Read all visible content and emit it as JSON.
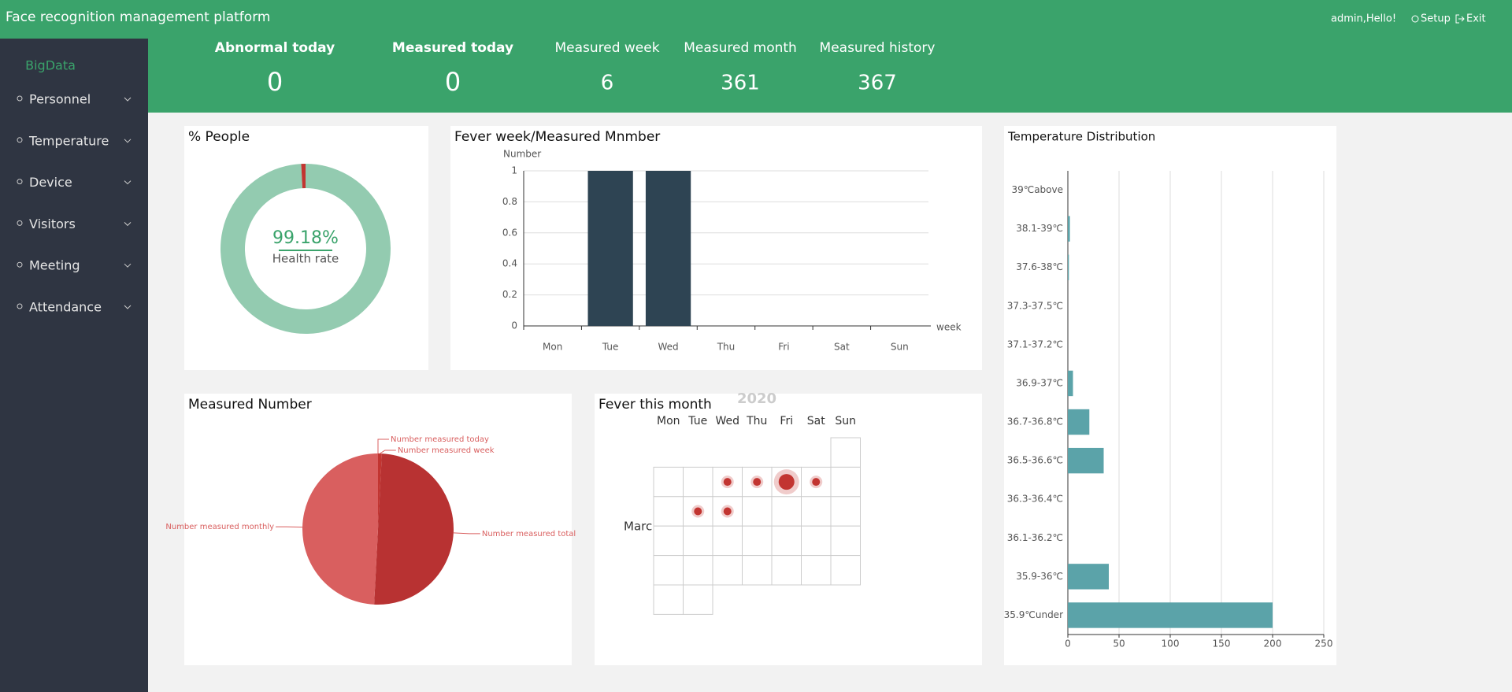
{
  "header": {
    "title": "Face recognition management platform",
    "greeting": "admin,Hello!",
    "setup": "Setup",
    "exit": "Exit"
  },
  "sidebar": {
    "brand": "BigData",
    "items": [
      "Personnel",
      "Temperature",
      "Device",
      "Visitors",
      "Meeting",
      "Attendance"
    ]
  },
  "stats": [
    {
      "label": "Abnormal today",
      "value": 0
    },
    {
      "label": "Measured today",
      "value": 0
    },
    {
      "label": "Measured week",
      "value": 6
    },
    {
      "label": "Measured month",
      "value": 361
    },
    {
      "label": "Measured history",
      "value": 367
    }
  ],
  "chart_data": [
    {
      "type": "donut",
      "title": "% People",
      "categories": [
        "Health rate",
        null
      ],
      "values": [
        99.18,
        0.82
      ],
      "value_labels": [
        "99.18%",
        null
      ],
      "colors": [
        "#93cbb0",
        "#c23531"
      ]
    },
    {
      "type": "bar",
      "title": "Fever week/Measured Mnmber",
      "y_label": "Number",
      "x_label": "week",
      "categories": [
        "Mon",
        "Tue",
        "Wed",
        "Thu",
        "Fri",
        "Sat",
        "Sun"
      ],
      "values": [
        0,
        1,
        1,
        0,
        0,
        0,
        0
      ],
      "color": "#2e4453",
      "ylim": [
        0,
        1
      ],
      "yticks": [
        0,
        0.2,
        0.4,
        0.6,
        0.8,
        1
      ],
      "grid": true
    },
    {
      "type": "pie",
      "title": "Measured Number",
      "categories": [
        "Number measured today",
        "Number measured week",
        "Number measured total",
        "Number measured monthly"
      ],
      "values": [
        0,
        6,
        367,
        361
      ],
      "colors": [
        "#b83232",
        "#c23531",
        "#b83232",
        "#d95f5f"
      ]
    },
    {
      "type": "calendar",
      "title": "Fever this month",
      "year": 2020,
      "month": "March",
      "weekdays": [
        "Mon",
        "Tue",
        "Wed",
        "Thu",
        "Fri",
        "Sat",
        "Sun"
      ],
      "x": [
        "2020-03-04",
        "2020-03-05",
        "2020-03-06",
        "2020-03-07",
        "2020-03-10",
        "2020-03-11"
      ],
      "values": [
        1,
        1,
        2,
        1,
        1,
        1
      ],
      "color": "#c23531"
    },
    {
      "type": "hbar",
      "title": "Temperature Distribution",
      "categories": [
        "39℃above",
        "38.1-39℃",
        "37.6-38℃",
        "37.3-37.5℃",
        "37.1-37.2℃",
        "36.9-37℃",
        "36.7-36.8℃",
        "36.5-36.6℃",
        "36.3-36.4℃",
        "36.1-36.2℃",
        "35.9-36℃",
        "35.9℃under"
      ],
      "values": [
        0,
        2,
        1,
        0,
        0,
        5,
        21,
        35,
        0,
        0,
        40,
        200
      ],
      "color": "#5ba3a9",
      "xlim": [
        0,
        250
      ],
      "xticks": [
        0,
        50,
        100,
        150,
        200,
        250
      ],
      "grid": true
    }
  ]
}
